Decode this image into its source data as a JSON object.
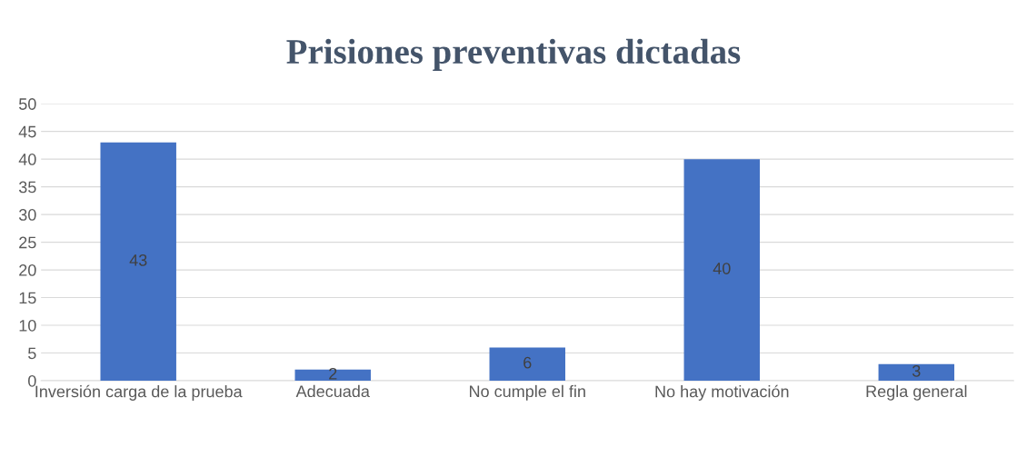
{
  "chart_data": {
    "type": "bar",
    "title": "Prisiones preventivas dictadas",
    "categories": [
      "Inversión carga de la prueba",
      "Adecuada",
      "No cumple el fin",
      "No hay motivación",
      "Regla general"
    ],
    "values": [
      43,
      2,
      6,
      40,
      3
    ],
    "color": "#4472c4",
    "ylim": [
      0,
      50
    ],
    "yticks": [
      0,
      5,
      10,
      15,
      20,
      25,
      30,
      35,
      40,
      45,
      50
    ],
    "grid": "y",
    "data_labels": true,
    "legend": false
  }
}
